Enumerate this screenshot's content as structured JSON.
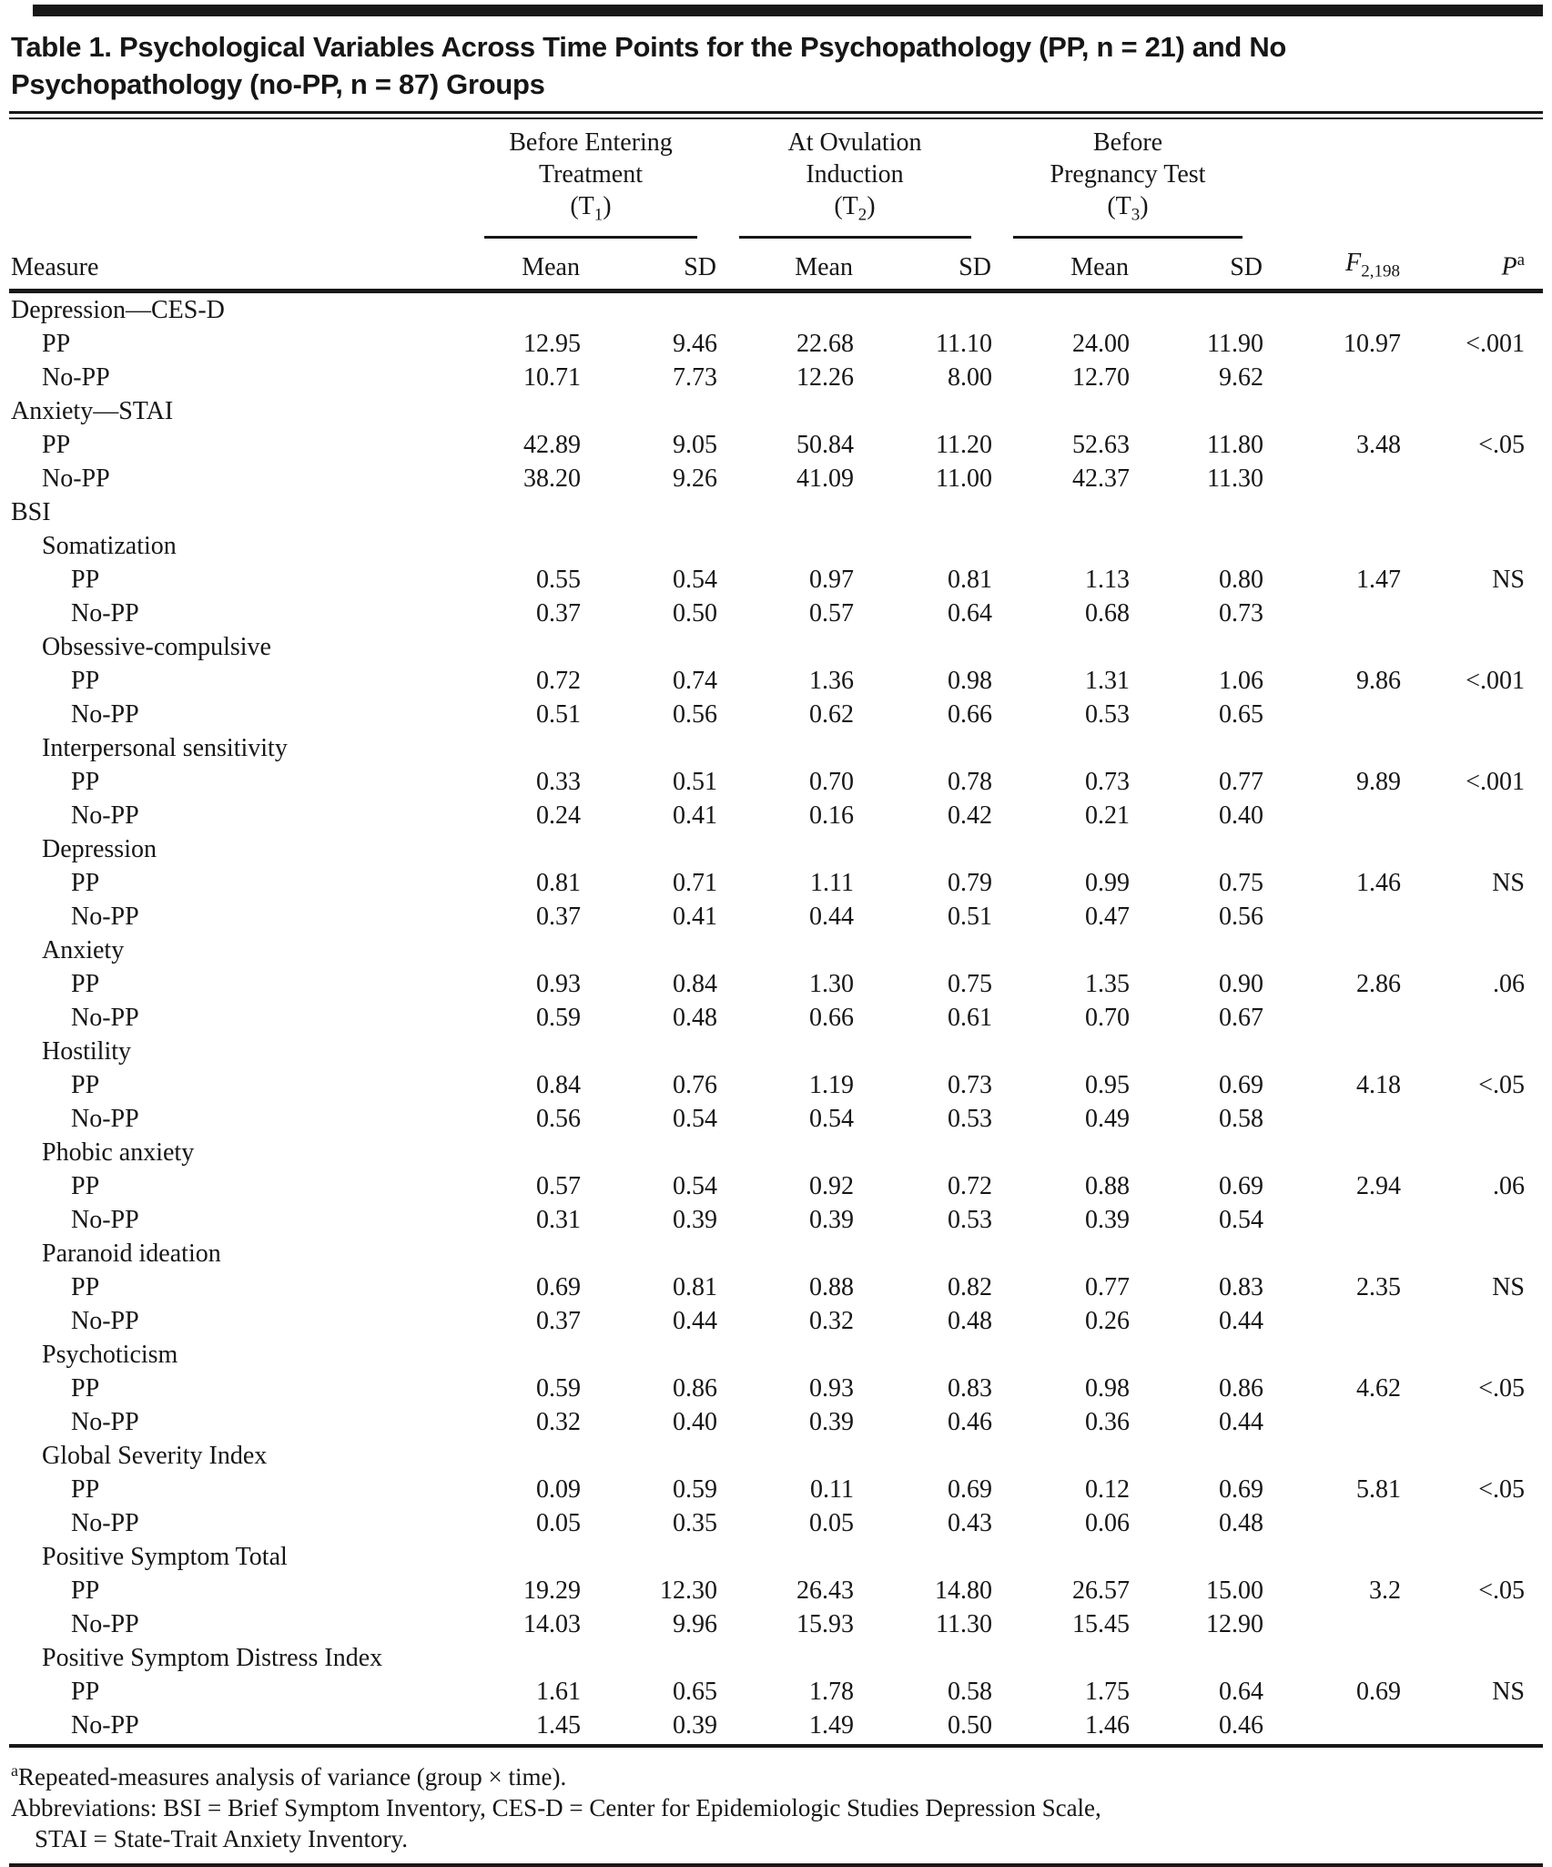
{
  "title": {
    "line1": "Table 1. Psychological Variables Across Time Points for the Psychopathology (PP, n = 21) and No",
    "line2": "Psychopathology (no-PP, n = 87) Groups"
  },
  "table": {
    "measure_header": "Measure",
    "spanners": [
      {
        "line1": "Before Entering",
        "line2": "Treatment",
        "t_prefix": "(T",
        "t_sub": "1",
        "t_suffix": ")"
      },
      {
        "line1": "At Ovulation",
        "line2": "Induction",
        "t_prefix": "(T",
        "t_sub": "2",
        "t_suffix": ")"
      },
      {
        "line1": "Before",
        "line2": "Pregnancy Test",
        "t_prefix": "(T",
        "t_sub": "3",
        "t_suffix": ")"
      }
    ],
    "col_headers": [
      "Mean",
      "SD",
      "Mean",
      "SD",
      "Mean",
      "SD"
    ],
    "f_header": {
      "label": "F",
      "sub": "2,198"
    },
    "p_header": {
      "label": "P",
      "sup": "a"
    },
    "rows": [
      {
        "label": "Depression—CES-D",
        "indent": 0,
        "cells": []
      },
      {
        "label": "PP",
        "indent": 1,
        "cells": [
          "12.95",
          "9.46",
          "22.68",
          "11.10",
          "24.00",
          "11.90",
          "10.97",
          "<.001"
        ]
      },
      {
        "label": "No-PP",
        "indent": 1,
        "cells": [
          "10.71",
          "7.73",
          "12.26",
          "8.00",
          "12.70",
          "9.62",
          "",
          ""
        ]
      },
      {
        "label": "Anxiety—STAI",
        "indent": 0,
        "cells": []
      },
      {
        "label": "PP",
        "indent": 1,
        "cells": [
          "42.89",
          "9.05",
          "50.84",
          "11.20",
          "52.63",
          "11.80",
          "3.48",
          "<.05"
        ]
      },
      {
        "label": "No-PP",
        "indent": 1,
        "cells": [
          "38.20",
          "9.26",
          "41.09",
          "11.00",
          "42.37",
          "11.30",
          "",
          ""
        ]
      },
      {
        "label": "BSI",
        "indent": 0,
        "cells": []
      },
      {
        "label": "Somatization",
        "indent": 1,
        "cells": []
      },
      {
        "label": "PP",
        "indent": 2,
        "cells": [
          "0.55",
          "0.54",
          "0.97",
          "0.81",
          "1.13",
          "0.80",
          "1.47",
          "NS"
        ]
      },
      {
        "label": "No-PP",
        "indent": 2,
        "cells": [
          "0.37",
          "0.50",
          "0.57",
          "0.64",
          "0.68",
          "0.73",
          "",
          ""
        ]
      },
      {
        "label": "Obsessive-compulsive",
        "indent": 1,
        "cells": []
      },
      {
        "label": "PP",
        "indent": 2,
        "cells": [
          "0.72",
          "0.74",
          "1.36",
          "0.98",
          "1.31",
          "1.06",
          "9.86",
          "<.001"
        ]
      },
      {
        "label": "No-PP",
        "indent": 2,
        "cells": [
          "0.51",
          "0.56",
          "0.62",
          "0.66",
          "0.53",
          "0.65",
          "",
          ""
        ]
      },
      {
        "label": "Interpersonal sensitivity",
        "indent": 1,
        "cells": []
      },
      {
        "label": "PP",
        "indent": 2,
        "cells": [
          "0.33",
          "0.51",
          "0.70",
          "0.78",
          "0.73",
          "0.77",
          "9.89",
          "<.001"
        ]
      },
      {
        "label": "No-PP",
        "indent": 2,
        "cells": [
          "0.24",
          "0.41",
          "0.16",
          "0.42",
          "0.21",
          "0.40",
          "",
          ""
        ]
      },
      {
        "label": "Depression",
        "indent": 1,
        "cells": []
      },
      {
        "label": "PP",
        "indent": 2,
        "cells": [
          "0.81",
          "0.71",
          "1.11",
          "0.79",
          "0.99",
          "0.75",
          "1.46",
          "NS"
        ]
      },
      {
        "label": "No-PP",
        "indent": 2,
        "cells": [
          "0.37",
          "0.41",
          "0.44",
          "0.51",
          "0.47",
          "0.56",
          "",
          ""
        ]
      },
      {
        "label": "Anxiety",
        "indent": 1,
        "cells": []
      },
      {
        "label": "PP",
        "indent": 2,
        "cells": [
          "0.93",
          "0.84",
          "1.30",
          "0.75",
          "1.35",
          "0.90",
          "2.86",
          ".06"
        ]
      },
      {
        "label": "No-PP",
        "indent": 2,
        "cells": [
          "0.59",
          "0.48",
          "0.66",
          "0.61",
          "0.70",
          "0.67",
          "",
          ""
        ]
      },
      {
        "label": "Hostility",
        "indent": 1,
        "cells": []
      },
      {
        "label": "PP",
        "indent": 2,
        "cells": [
          "0.84",
          "0.76",
          "1.19",
          "0.73",
          "0.95",
          "0.69",
          "4.18",
          "<.05"
        ]
      },
      {
        "label": "No-PP",
        "indent": 2,
        "cells": [
          "0.56",
          "0.54",
          "0.54",
          "0.53",
          "0.49",
          "0.58",
          "",
          ""
        ]
      },
      {
        "label": "Phobic anxiety",
        "indent": 1,
        "cells": []
      },
      {
        "label": "PP",
        "indent": 2,
        "cells": [
          "0.57",
          "0.54",
          "0.92",
          "0.72",
          "0.88",
          "0.69",
          "2.94",
          ".06"
        ]
      },
      {
        "label": "No-PP",
        "indent": 2,
        "cells": [
          "0.31",
          "0.39",
          "0.39",
          "0.53",
          "0.39",
          "0.54",
          "",
          ""
        ]
      },
      {
        "label": "Paranoid ideation",
        "indent": 1,
        "cells": []
      },
      {
        "label": "PP",
        "indent": 2,
        "cells": [
          "0.69",
          "0.81",
          "0.88",
          "0.82",
          "0.77",
          "0.83",
          "2.35",
          "NS"
        ]
      },
      {
        "label": "No-PP",
        "indent": 2,
        "cells": [
          "0.37",
          "0.44",
          "0.32",
          "0.48",
          "0.26",
          "0.44",
          "",
          ""
        ]
      },
      {
        "label": "Psychoticism",
        "indent": 1,
        "cells": []
      },
      {
        "label": "PP",
        "indent": 2,
        "cells": [
          "0.59",
          "0.86",
          "0.93",
          "0.83",
          "0.98",
          "0.86",
          "4.62",
          "<.05"
        ]
      },
      {
        "label": "No-PP",
        "indent": 2,
        "cells": [
          "0.32",
          "0.40",
          "0.39",
          "0.46",
          "0.36",
          "0.44",
          "",
          ""
        ]
      },
      {
        "label": "Global Severity Index",
        "indent": 1,
        "cells": []
      },
      {
        "label": "PP",
        "indent": 2,
        "cells": [
          "0.09",
          "0.59",
          "0.11",
          "0.69",
          "0.12",
          "0.69",
          "5.81",
          "<.05"
        ]
      },
      {
        "label": "No-PP",
        "indent": 2,
        "cells": [
          "0.05",
          "0.35",
          "0.05",
          "0.43",
          "0.06",
          "0.48",
          "",
          ""
        ]
      },
      {
        "label": "Positive Symptom Total",
        "indent": 1,
        "cells": []
      },
      {
        "label": "PP",
        "indent": 2,
        "cells": [
          "19.29",
          "12.30",
          "26.43",
          "14.80",
          "26.57",
          "15.00",
          "3.2",
          "<.05"
        ]
      },
      {
        "label": "No-PP",
        "indent": 2,
        "cells": [
          "14.03",
          "9.96",
          "15.93",
          "11.30",
          "15.45",
          "12.90",
          "",
          ""
        ]
      },
      {
        "label": "Positive Symptom Distress Index",
        "indent": 1,
        "cells": []
      },
      {
        "label": "PP",
        "indent": 2,
        "cells": [
          "1.61",
          "0.65",
          "1.78",
          "0.58",
          "1.75",
          "0.64",
          "0.69",
          "NS"
        ]
      },
      {
        "label": "No-PP",
        "indent": 2,
        "cells": [
          "1.45",
          "0.39",
          "1.49",
          "0.50",
          "1.46",
          "0.46",
          "",
          ""
        ]
      }
    ]
  },
  "footnotes": {
    "marker": "a",
    "line1": "Repeated-measures analysis of variance (group × time).",
    "line2": "Abbreviations: BSI = Brief Symptom Inventory, CES-D = Center for Epidemiologic Studies Depression Scale,",
    "line3": "STAI = State-Trait Anxiety Inventory."
  },
  "colors": {
    "ink": "#181818",
    "paper": "#ffffff"
  }
}
